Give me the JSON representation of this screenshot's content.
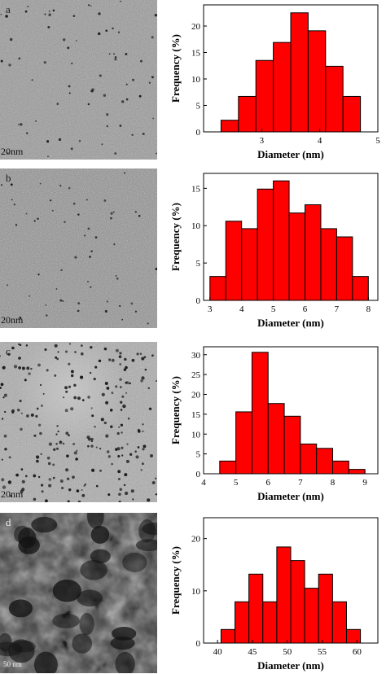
{
  "panels": [
    {
      "letter": "a",
      "scale": "20nm"
    },
    {
      "letter": "b",
      "scale": "20nm"
    },
    {
      "letter": "c",
      "scale": "20nm"
    },
    {
      "letter": "d",
      "scale": "50 nm"
    }
  ],
  "colors": {
    "bar": "#ff0000",
    "bar_edge": "#000000"
  },
  "chart_data": [
    {
      "type": "bar",
      "xlabel": "Diameter (nm)",
      "ylabel": "Frequency (%)",
      "xlim": [
        2.0,
        5.0
      ],
      "ylim": [
        0,
        24
      ],
      "xticks": [
        3,
        4,
        5
      ],
      "yticks": [
        0,
        5,
        10,
        15,
        20
      ],
      "bins": [
        [
          2.3,
          2.6
        ],
        [
          2.6,
          2.9
        ],
        [
          2.9,
          3.2
        ],
        [
          3.2,
          3.5
        ],
        [
          3.5,
          3.8
        ],
        [
          3.8,
          4.1
        ],
        [
          4.1,
          4.4
        ],
        [
          4.4,
          4.7
        ]
      ],
      "values": [
        2.2,
        6.7,
        13.5,
        16.9,
        22.5,
        19.1,
        12.4,
        6.7
      ]
    },
    {
      "type": "bar",
      "xlabel": "Diameter (nm)",
      "ylabel": "Frequency (%)",
      "xlim": [
        2.8,
        8.3
      ],
      "ylim": [
        0,
        17
      ],
      "xticks": [
        3,
        4,
        5,
        6,
        7,
        8
      ],
      "yticks": [
        0,
        5,
        10,
        15
      ],
      "bins": [
        [
          3.0,
          3.5
        ],
        [
          3.5,
          4.0
        ],
        [
          4.0,
          4.5
        ],
        [
          4.5,
          5.0
        ],
        [
          5.0,
          5.5
        ],
        [
          5.5,
          6.0
        ],
        [
          6.0,
          6.5
        ],
        [
          6.5,
          7.0
        ],
        [
          7.0,
          7.5
        ],
        [
          7.5,
          8.0
        ]
      ],
      "values": [
        3.2,
        10.6,
        9.6,
        14.9,
        16.0,
        11.7,
        12.8,
        9.6,
        8.5,
        3.2
      ]
    },
    {
      "type": "bar",
      "xlabel": "Diameter (nm)",
      "ylabel": "Frequency (%)",
      "xlim": [
        4.0,
        9.4
      ],
      "ylim": [
        0,
        32
      ],
      "xticks": [
        4,
        5,
        6,
        7,
        8,
        9
      ],
      "yticks": [
        0,
        5,
        10,
        15,
        20,
        25,
        30
      ],
      "bins": [
        [
          4.5,
          5.0
        ],
        [
          5.0,
          5.5
        ],
        [
          5.5,
          6.0
        ],
        [
          6.0,
          6.5
        ],
        [
          6.5,
          7.0
        ],
        [
          7.0,
          7.5
        ],
        [
          7.5,
          8.0
        ],
        [
          8.0,
          8.5
        ],
        [
          8.5,
          9.0
        ]
      ],
      "values": [
        3.2,
        15.6,
        30.6,
        17.7,
        14.5,
        7.5,
        6.4,
        3.2,
        1.1
      ]
    },
    {
      "type": "bar",
      "xlabel": "Diameter (nm)",
      "ylabel": "Frequency (%)",
      "xlim": [
        38,
        63
      ],
      "ylim": [
        0,
        24
      ],
      "xticks": [
        40,
        45,
        50,
        55,
        60
      ],
      "yticks": [
        0,
        10,
        20
      ],
      "bins": [
        [
          40.5,
          42.5
        ],
        [
          42.5,
          44.5
        ],
        [
          44.5,
          46.5
        ],
        [
          46.5,
          48.5
        ],
        [
          48.5,
          50.5
        ],
        [
          50.5,
          52.5
        ],
        [
          52.5,
          54.5
        ],
        [
          54.5,
          56.5
        ],
        [
          56.5,
          58.5
        ],
        [
          58.5,
          60.5
        ]
      ],
      "values": [
        2.6,
        7.9,
        13.2,
        7.9,
        18.4,
        15.8,
        10.5,
        13.2,
        7.9,
        2.6
      ]
    }
  ]
}
